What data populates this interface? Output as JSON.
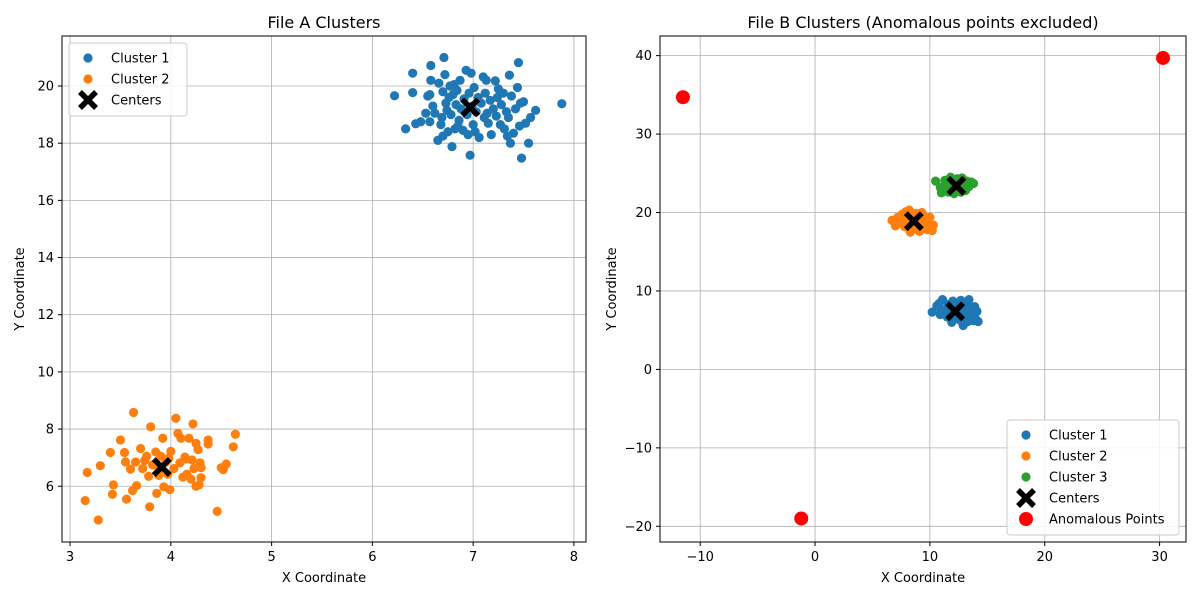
{
  "chart_data": [
    {
      "type": "scatter",
      "title": "File A Clusters",
      "xlabel": "X Coordinate",
      "ylabel": "Y Coordinate",
      "xlim": [
        2.92,
        8.12
      ],
      "ylim": [
        4.05,
        21.75
      ],
      "xticks": [
        3,
        4,
        5,
        6,
        7,
        8
      ],
      "yticks": [
        6,
        8,
        10,
        12,
        14,
        16,
        18,
        20
      ],
      "grid": true,
      "legend_position": "top-left",
      "series": [
        {
          "name": "Cluster 1",
          "color": "#1f77b4",
          "marker": "circle",
          "points": [
            [
              6.22,
              19.66
            ],
            [
              6.33,
              18.5
            ],
            [
              6.4,
              20.45
            ],
            [
              6.4,
              19.77
            ],
            [
              6.43,
              18.68
            ],
            [
              6.48,
              18.75
            ],
            [
              6.53,
              19.05
            ],
            [
              6.55,
              19.65
            ],
            [
              6.57,
              19.7
            ],
            [
              6.57,
              18.75
            ],
            [
              6.58,
              20.72
            ],
            [
              6.58,
              20.2
            ],
            [
              6.6,
              19.3
            ],
            [
              6.62,
              19.05
            ],
            [
              6.65,
              18.1
            ],
            [
              6.66,
              20.1
            ],
            [
              6.68,
              18.65
            ],
            [
              6.69,
              18.9
            ],
            [
              6.7,
              19.8
            ],
            [
              6.7,
              18.25
            ],
            [
              6.71,
              21.0
            ],
            [
              6.72,
              20.4
            ],
            [
              6.73,
              19.4
            ],
            [
              6.74,
              19.15
            ],
            [
              6.75,
              18.4
            ],
            [
              6.76,
              19.6
            ],
            [
              6.77,
              20.0
            ],
            [
              6.78,
              19.0
            ],
            [
              6.79,
              17.88
            ],
            [
              6.8,
              19.7
            ],
            [
              6.81,
              20.05
            ],
            [
              6.82,
              18.5
            ],
            [
              6.83,
              19.35
            ],
            [
              6.84,
              19.85
            ],
            [
              6.86,
              18.8
            ],
            [
              6.87,
              20.2
            ],
            [
              6.88,
              19.2
            ],
            [
              6.9,
              18.45
            ],
            [
              6.91,
              19.55
            ],
            [
              6.93,
              20.55
            ],
            [
              6.94,
              19.0
            ],
            [
              6.95,
              18.3
            ],
            [
              6.96,
              19.75
            ],
            [
              6.97,
              17.58
            ],
            [
              6.98,
              20.45
            ],
            [
              6.99,
              19.3
            ],
            [
              7.0,
              18.65
            ],
            [
              7.01,
              19.95
            ],
            [
              7.02,
              18.4
            ],
            [
              7.03,
              19.1
            ],
            [
              7.05,
              19.6
            ],
            [
              7.06,
              18.2
            ],
            [
              7.08,
              19.4
            ],
            [
              7.1,
              20.32
            ],
            [
              7.11,
              18.9
            ],
            [
              7.12,
              19.75
            ],
            [
              7.13,
              20.2
            ],
            [
              7.14,
              19.05
            ],
            [
              7.15,
              18.7
            ],
            [
              7.17,
              19.5
            ],
            [
              7.18,
              18.3
            ],
            [
              7.2,
              19.2
            ],
            [
              7.22,
              20.18
            ],
            [
              7.23,
              18.95
            ],
            [
              7.24,
              19.6
            ],
            [
              7.25,
              19.9
            ],
            [
              7.27,
              18.65
            ],
            [
              7.28,
              19.35
            ],
            [
              7.3,
              19.75
            ],
            [
              7.31,
              18.5
            ],
            [
              7.33,
              19.1
            ],
            [
              7.34,
              18.25
            ],
            [
              7.35,
              18.9
            ],
            [
              7.36,
              20.38
            ],
            [
              7.37,
              18.0
            ],
            [
              7.38,
              19.65
            ],
            [
              7.4,
              18.35
            ],
            [
              7.42,
              19.2
            ],
            [
              7.44,
              19.95
            ],
            [
              7.45,
              20.82
            ],
            [
              7.46,
              18.6
            ],
            [
              7.47,
              19.4
            ],
            [
              7.48,
              17.48
            ],
            [
              7.5,
              19.45
            ],
            [
              7.52,
              18.7
            ],
            [
              7.55,
              18.0
            ],
            [
              7.57,
              18.9
            ],
            [
              7.62,
              19.15
            ],
            [
              7.88,
              19.38
            ],
            [
              6.85,
              18.6
            ]
          ]
        },
        {
          "name": "Cluster 2",
          "color": "#ff7f0e",
          "marker": "circle",
          "points": [
            [
              3.15,
              5.5
            ],
            [
              3.17,
              6.48
            ],
            [
              3.28,
              4.82
            ],
            [
              3.3,
              6.72
            ],
            [
              3.4,
              7.18
            ],
            [
              3.42,
              5.72
            ],
            [
              3.43,
              6.05
            ],
            [
              3.5,
              7.62
            ],
            [
              3.54,
              7.18
            ],
            [
              3.55,
              6.85
            ],
            [
              3.56,
              5.55
            ],
            [
              3.6,
              6.6
            ],
            [
              3.62,
              5.85
            ],
            [
              3.63,
              8.58
            ],
            [
              3.65,
              6.85
            ],
            [
              3.66,
              6.02
            ],
            [
              3.7,
              7.32
            ],
            [
              3.72,
              6.62
            ],
            [
              3.74,
              6.9
            ],
            [
              3.76,
              7.05
            ],
            [
              3.78,
              6.35
            ],
            [
              3.79,
              5.28
            ],
            [
              3.8,
              8.08
            ],
            [
              3.82,
              6.75
            ],
            [
              3.85,
              7.2
            ],
            [
              3.86,
              5.75
            ],
            [
              3.88,
              6.55
            ],
            [
              3.9,
              7.05
            ],
            [
              3.92,
              7.68
            ],
            [
              3.93,
              5.98
            ],
            [
              3.95,
              6.85
            ],
            [
              3.97,
              6.42
            ],
            [
              3.99,
              5.88
            ],
            [
              4.0,
              7.22
            ],
            [
              4.03,
              6.62
            ],
            [
              4.05,
              8.38
            ],
            [
              4.07,
              7.85
            ],
            [
              4.09,
              6.82
            ],
            [
              4.1,
              7.68
            ],
            [
              4.12,
              6.32
            ],
            [
              4.14,
              7.02
            ],
            [
              4.16,
              6.42
            ],
            [
              4.18,
              7.68
            ],
            [
              4.2,
              6.25
            ],
            [
              4.21,
              6.92
            ],
            [
              4.22,
              8.18
            ],
            [
              4.23,
              6.62
            ],
            [
              4.25,
              6.0
            ],
            [
              4.27,
              7.28
            ],
            [
              4.28,
              6.05
            ],
            [
              4.29,
              6.82
            ],
            [
              4.3,
              6.65
            ],
            [
              4.3,
              6.3
            ],
            [
              4.37,
              7.48
            ],
            [
              4.37,
              7.62
            ],
            [
              4.46,
              5.12
            ],
            [
              4.5,
              6.65
            ],
            [
              4.52,
              6.58
            ],
            [
              4.55,
              6.78
            ],
            [
              4.62,
              7.38
            ],
            [
              4.64,
              7.82
            ],
            [
              3.98,
              6.98
            ],
            [
              4.15,
              6.95
            ],
            [
              3.88,
              6.38
            ],
            [
              4.25,
              7.5
            ]
          ]
        },
        {
          "name": "Centers",
          "color": "#000000",
          "marker": "x",
          "points": [
            [
              6.97,
              19.25
            ],
            [
              3.91,
              6.67
            ]
          ]
        }
      ]
    },
    {
      "type": "scatter",
      "title": "File B Clusters (Anomalous points excluded)",
      "xlabel": "X Coordinate",
      "ylabel": "Y Coordinate",
      "xlim": [
        -13.5,
        32.3
      ],
      "ylim": [
        -22.0,
        42.5
      ],
      "xticks": [
        -10,
        0,
        10,
        20,
        30
      ],
      "yticks": [
        -20,
        -10,
        0,
        10,
        20,
        30,
        40
      ],
      "grid": true,
      "legend_position": "bottom-right",
      "series": [
        {
          "name": "Cluster 1",
          "color": "#1f77b4",
          "marker": "circle",
          "points": [
            [
              10.2,
              7.3
            ],
            [
              10.6,
              8.1
            ],
            [
              10.9,
              7.0
            ],
            [
              11.1,
              8.9
            ],
            [
              11.3,
              7.6
            ],
            [
              11.5,
              6.7
            ],
            [
              11.6,
              8.3
            ],
            [
              11.8,
              7.2
            ],
            [
              11.9,
              6.0
            ],
            [
              12.0,
              8.7
            ],
            [
              12.1,
              7.8
            ],
            [
              12.2,
              6.5
            ],
            [
              12.3,
              8.2
            ],
            [
              12.4,
              7.0
            ],
            [
              12.6,
              6.3
            ],
            [
              12.7,
              8.8
            ],
            [
              12.8,
              7.5
            ],
            [
              12.9,
              5.6
            ],
            [
              13.0,
              6.9
            ],
            [
              13.1,
              8.4
            ],
            [
              13.2,
              7.3
            ],
            [
              13.3,
              6.1
            ],
            [
              13.4,
              8.9
            ],
            [
              13.5,
              7.9
            ],
            [
              13.6,
              6.6
            ],
            [
              13.7,
              7.1
            ],
            [
              13.9,
              8.0
            ],
            [
              14.0,
              6.4
            ],
            [
              14.1,
              7.4
            ],
            [
              14.2,
              6.1
            ],
            [
              11.0,
              7.5
            ],
            [
              11.7,
              7.9
            ],
            [
              12.5,
              7.7
            ],
            [
              13.8,
              6.2
            ],
            [
              10.8,
              8.4
            ]
          ]
        },
        {
          "name": "Cluster 2",
          "color": "#ff7f0e",
          "marker": "circle",
          "points": [
            [
              6.7,
              19.0
            ],
            [
              7.0,
              18.3
            ],
            [
              7.2,
              19.4
            ],
            [
              7.4,
              18.7
            ],
            [
              7.6,
              19.8
            ],
            [
              7.8,
              18.2
            ],
            [
              7.9,
              20.1
            ],
            [
              8.0,
              19.2
            ],
            [
              8.1,
              18.6
            ],
            [
              8.2,
              20.3
            ],
            [
              8.4,
              19.5
            ],
            [
              8.5,
              17.9
            ],
            [
              8.6,
              18.8
            ],
            [
              8.8,
              19.9
            ],
            [
              8.9,
              18.3
            ],
            [
              9.0,
              19.3
            ],
            [
              9.1,
              17.6
            ],
            [
              9.2,
              18.9
            ],
            [
              9.4,
              19.7
            ],
            [
              9.5,
              18.1
            ],
            [
              9.6,
              19.1
            ],
            [
              9.8,
              17.8
            ],
            [
              9.9,
              18.6
            ],
            [
              10.0,
              19.4
            ],
            [
              10.2,
              17.7
            ],
            [
              10.3,
              18.4
            ],
            [
              8.3,
              17.5
            ],
            [
              9.3,
              20.0
            ]
          ]
        },
        {
          "name": "Cluster 3",
          "color": "#2ca02c",
          "marker": "circle",
          "points": [
            [
              10.5,
              24.0
            ],
            [
              10.9,
              23.2
            ],
            [
              11.0,
              22.5
            ],
            [
              11.3,
              24.1
            ],
            [
              11.5,
              23.6
            ],
            [
              11.6,
              22.6
            ],
            [
              11.8,
              24.5
            ],
            [
              11.9,
              23.0
            ],
            [
              12.1,
              22.4
            ],
            [
              12.2,
              23.8
            ],
            [
              12.4,
              24.3
            ],
            [
              12.5,
              23.1
            ],
            [
              12.7,
              22.6
            ],
            [
              12.8,
              24.4
            ],
            [
              12.9,
              23.4
            ],
            [
              13.1,
              22.8
            ],
            [
              13.2,
              24.0
            ],
            [
              13.4,
              23.3
            ],
            [
              13.6,
              23.9
            ],
            [
              13.8,
              23.7
            ],
            [
              12.0,
              24.2
            ],
            [
              11.4,
              22.9
            ]
          ]
        },
        {
          "name": "Centers",
          "color": "#000000",
          "marker": "x",
          "points": [
            [
              12.2,
              7.4
            ],
            [
              8.6,
              18.9
            ],
            [
              12.3,
              23.4
            ]
          ]
        },
        {
          "name": "Anomalous Points",
          "color": "#ff0000",
          "marker": "big-circle",
          "points": [
            [
              -11.5,
              34.7
            ],
            [
              -1.2,
              -19.0
            ],
            [
              30.3,
              39.7
            ]
          ]
        }
      ]
    }
  ]
}
